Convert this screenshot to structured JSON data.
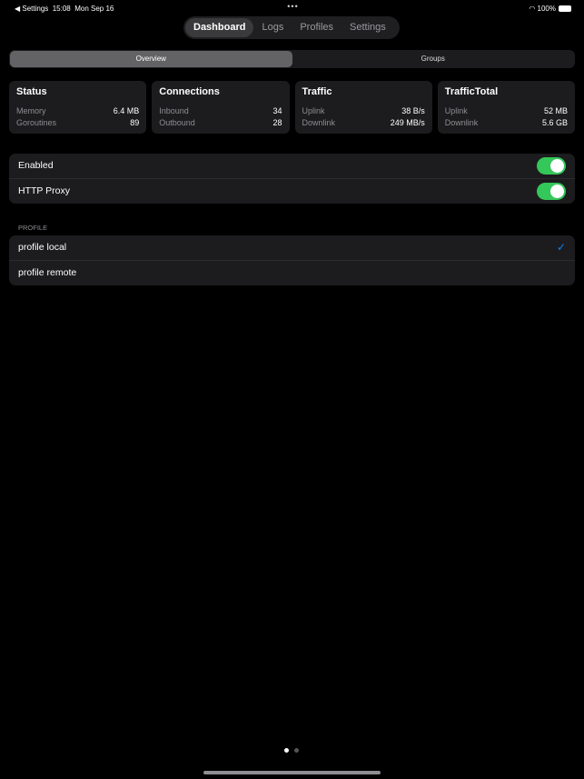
{
  "statusbar": {
    "back": "◀ Settings",
    "time": "15:08",
    "date": "Mon Sep 16",
    "battery": "100%"
  },
  "tabs": [
    "Dashboard",
    "Logs",
    "Profiles",
    "Settings"
  ],
  "segments": [
    "Overview",
    "Groups"
  ],
  "cards": [
    {
      "title": "Status",
      "rows": [
        [
          "Memory",
          "6.4 MB"
        ],
        [
          "Goroutines",
          "89"
        ]
      ]
    },
    {
      "title": "Connections",
      "rows": [
        [
          "Inbound",
          "34"
        ],
        [
          "Outbound",
          "28"
        ]
      ]
    },
    {
      "title": "Traffic",
      "rows": [
        [
          "Uplink",
          "38 B/s"
        ],
        [
          "Downlink",
          "249 MB/s"
        ]
      ]
    },
    {
      "title": "TrafficTotal",
      "rows": [
        [
          "Uplink",
          "52 MB"
        ],
        [
          "Downlink",
          "5.6 GB"
        ]
      ]
    }
  ],
  "toggles": [
    {
      "label": "Enabled",
      "on": true
    },
    {
      "label": "HTTP Proxy",
      "on": true
    }
  ],
  "profile": {
    "header": "PROFILE",
    "items": [
      {
        "label": "profile local",
        "selected": true
      },
      {
        "label": "profile remote",
        "selected": false
      }
    ]
  },
  "colors": {
    "accent": "#0a84ff",
    "toggle": "#34c759"
  }
}
